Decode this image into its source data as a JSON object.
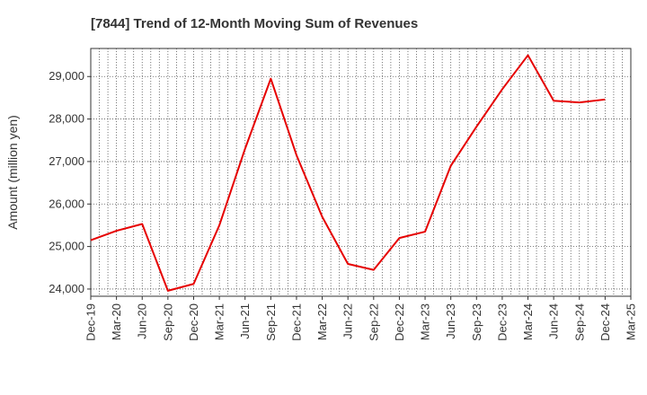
{
  "chart_data": {
    "type": "line",
    "title": "[7844]  Trend of 12-Month Moving Sum of Revenues",
    "xlabel": "",
    "ylabel": "Amount (million yen)",
    "x_tick_labels": [
      "Dec-19",
      "Mar-20",
      "Jun-20",
      "Sep-20",
      "Dec-20",
      "Mar-21",
      "Jun-21",
      "Sep-21",
      "Dec-21",
      "Mar-22",
      "Jun-22",
      "Sep-22",
      "Dec-22",
      "Mar-23",
      "Jun-23",
      "Sep-23",
      "Dec-23",
      "Mar-24",
      "Jun-24",
      "Sep-24",
      "Dec-24",
      "Mar-25"
    ],
    "y_ticks": [
      24000,
      25000,
      26000,
      27000,
      28000,
      29000
    ],
    "y_tick_labels": [
      "24,000",
      "25,000",
      "26,000",
      "27,000",
      "28,000",
      "29,000"
    ],
    "ylim": [
      23830,
      29660
    ],
    "grid": true,
    "series": [
      {
        "color": "#e60000",
        "x": [
          "Dec-19",
          "Mar-20",
          "Jun-20",
          "Sep-20",
          "Dec-20",
          "Mar-21",
          "Jun-21",
          "Sep-21",
          "Dec-21",
          "Mar-22",
          "Jun-22",
          "Sep-22",
          "Dec-22",
          "Mar-23",
          "Jun-23",
          "Sep-23",
          "Dec-23",
          "Mar-24",
          "Jun-24",
          "Sep-24",
          "Dec-24"
        ],
        "values": [
          25150,
          25370,
          25530,
          23960,
          24120,
          25500,
          27300,
          28950,
          27150,
          25700,
          24590,
          24450,
          25200,
          25350,
          26900,
          27820,
          28700,
          29500,
          28430,
          28390,
          28460
        ]
      }
    ]
  }
}
